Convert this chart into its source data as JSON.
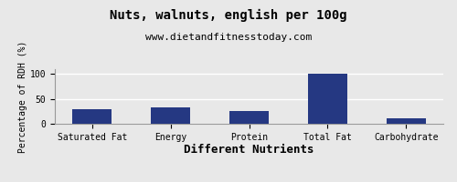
{
  "title": "Nuts, walnuts, english per 100g",
  "subtitle": "www.dietandfitnesstoday.com",
  "xlabel": "Different Nutrients",
  "ylabel": "Percentage of RDH (%)",
  "categories": [
    "Saturated Fat",
    "Energy",
    "Protein",
    "Total Fat",
    "Carbohydrate"
  ],
  "values": [
    30,
    33,
    26,
    100,
    11
  ],
  "bar_color": "#253882",
  "ylim": [
    0,
    110
  ],
  "yticks": [
    0,
    50,
    100
  ],
  "background_color": "#e8e8e8",
  "plot_background": "#e8e8e8",
  "title_fontsize": 10,
  "subtitle_fontsize": 8,
  "xlabel_fontsize": 9,
  "ylabel_fontsize": 7,
  "tick_fontsize": 7,
  "grid_color": "#ffffff",
  "border_color": "#999999"
}
